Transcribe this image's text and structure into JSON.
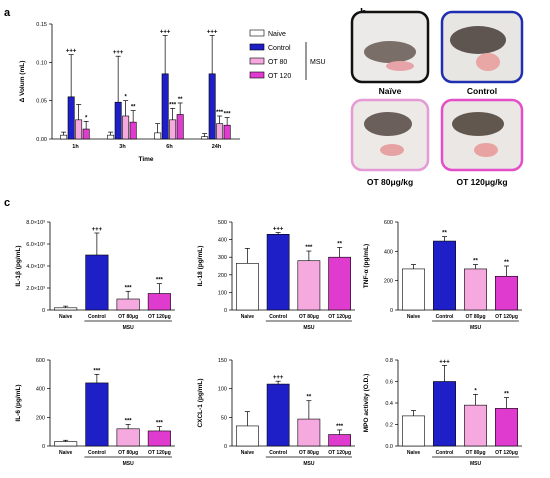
{
  "panels": {
    "a": "a",
    "b": "b",
    "c": "c"
  },
  "colors": {
    "naive": "#ffffff",
    "control": "#1f1fc8",
    "ot80": "#f6a9df",
    "ot120": "#e03bcf"
  },
  "legend": {
    "items": [
      "Naive",
      "Control",
      "OT 80",
      "OT 120"
    ],
    "group_label": "MSU"
  },
  "photos": [
    {
      "caption": "Naïve",
      "border": "#111111"
    },
    {
      "caption": "Control",
      "border": "#1f2fb0"
    },
    {
      "caption": "OT 80μg/kg",
      "border": "#e59ad6"
    },
    {
      "caption": "OT 120μg/kg",
      "border": "#e44fc9"
    }
  ],
  "chart_data": [
    {
      "id": "a",
      "type": "bar",
      "categories": [
        "1h",
        "3h",
        "6h",
        "24h"
      ],
      "xlabel": "Time",
      "ylabel": "Δ Volum (mL)",
      "ylim": [
        0,
        0.15
      ],
      "yticks": [
        "0.00",
        "0.05",
        "0.10",
        "0.15"
      ],
      "series": [
        {
          "name": "Naive",
          "values": [
            0.005,
            0.005,
            0.008,
            0.003
          ],
          "errors": [
            0.004,
            0.004,
            0.012,
            0.004
          ],
          "sig": [
            "",
            "",
            "",
            ""
          ]
        },
        {
          "name": "Control",
          "values": [
            0.055,
            0.048,
            0.085,
            0.085
          ],
          "errors": [
            0.055,
            0.06,
            0.05,
            0.05
          ],
          "sig": [
            "+++",
            "+++",
            "+++",
            "+++"
          ]
        },
        {
          "name": "OT 80",
          "values": [
            0.025,
            0.03,
            0.025,
            0.02
          ],
          "errors": [
            0.02,
            0.02,
            0.015,
            0.01
          ],
          "sig": [
            "",
            "*",
            "***",
            "***"
          ]
        },
        {
          "name": "OT 120",
          "values": [
            0.013,
            0.022,
            0.032,
            0.018
          ],
          "errors": [
            0.01,
            0.015,
            0.015,
            0.01
          ],
          "sig": [
            "*",
            "**",
            "**",
            "***"
          ]
        }
      ]
    },
    {
      "id": "il1b",
      "type": "bar",
      "ylabel": "IL-1β (pg/mL)",
      "ylim": [
        0,
        8000
      ],
      "yticks": [
        "0",
        "2.0×10³",
        "4.0×10³",
        "6.0×10³",
        "8.0×10³"
      ],
      "categories": [
        "Naive",
        "Control",
        "OT 80μg",
        "OT 120μg"
      ],
      "values": [
        200,
        5000,
        1000,
        1500
      ],
      "errors": [
        150,
        2000,
        700,
        900
      ],
      "sig": [
        "",
        "+++",
        "***",
        "***"
      ],
      "group_label": "MSU"
    },
    {
      "id": "il18",
      "type": "bar",
      "ylabel": "IL-18 (pg/mL)",
      "ylim": [
        0,
        500
      ],
      "yticks": [
        "0",
        "100",
        "200",
        "300",
        "400",
        "500"
      ],
      "categories": [
        "Naive",
        "Control",
        "OT 80μg",
        "OT 120μg"
      ],
      "values": [
        265,
        430,
        280,
        300
      ],
      "errors": [
        85,
        10,
        55,
        55
      ],
      "sig": [
        "",
        "+++",
        "***",
        "**"
      ],
      "group_label": "MSU"
    },
    {
      "id": "tnfa",
      "type": "bar",
      "ylabel": "TNF-α (pg/mL)",
      "ylim": [
        0,
        600
      ],
      "yticks": [
        "0",
        "200",
        "400",
        "600"
      ],
      "categories": [
        "Naive",
        "Control",
        "OT 80μg",
        "OT 120μg"
      ],
      "values": [
        280,
        470,
        280,
        230
      ],
      "errors": [
        30,
        30,
        30,
        70
      ],
      "sig": [
        "",
        "**",
        "**",
        "**"
      ],
      "group_label": "MSU"
    },
    {
      "id": "il6",
      "type": "bar",
      "ylabel": "IL-6 (pg/mL)",
      "ylim": [
        0,
        600
      ],
      "yticks": [
        "0",
        "200",
        "400",
        "600"
      ],
      "categories": [
        "Naive",
        "Control",
        "OT 80μg",
        "OT 120μg"
      ],
      "values": [
        30,
        440,
        120,
        105
      ],
      "errors": [
        10,
        60,
        30,
        30
      ],
      "sig": [
        "",
        "***",
        "***",
        "***"
      ],
      "group_label": "MSU"
    },
    {
      "id": "cxcl1",
      "type": "bar",
      "ylabel": "CXCL-1 (pg/mL)",
      "ylim": [
        0,
        150
      ],
      "yticks": [
        "0",
        "50",
        "100",
        "150"
      ],
      "categories": [
        "Naive",
        "Control",
        "OT 80μg",
        "OT 120μg"
      ],
      "values": [
        35,
        108,
        47,
        20
      ],
      "errors": [
        25,
        5,
        32,
        8
      ],
      "sig": [
        "",
        "+++",
        "**",
        "***"
      ],
      "group_label": "MSU"
    },
    {
      "id": "mpo",
      "type": "bar",
      "ylabel": "MPO activity (O.D.)",
      "ylim": [
        0,
        0.8
      ],
      "yticks": [
        "0.0",
        "0.2",
        "0.4",
        "0.6",
        "0.8"
      ],
      "categories": [
        "Naive",
        "Control",
        "OT 80μg",
        "OT 120μg"
      ],
      "values": [
        0.28,
        0.6,
        0.38,
        0.35
      ],
      "errors": [
        0.05,
        0.15,
        0.1,
        0.1
      ],
      "sig": [
        "",
        "+++",
        "*",
        "**"
      ],
      "group_label": "MSU"
    }
  ]
}
